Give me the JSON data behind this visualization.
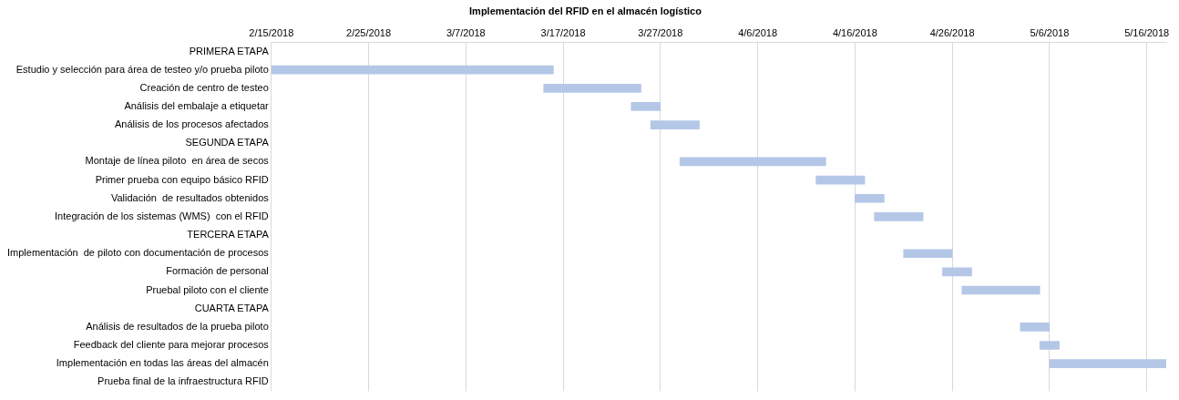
{
  "chart_data": {
    "type": "bar",
    "orientation": "horizontal",
    "title": "Implementación del RFID en el almacén logístico",
    "categories": [
      "PRIMERA ETAPA",
      "Estudio y selección para área de testeo y/o prueba piloto",
      "Creación de centro de testeo",
      "Análisis del embalaje a etiquetar",
      "Análisis de los procesos afectados",
      "SEGUNDA ETAPA",
      "Montaje de línea piloto  en área de secos",
      "Primer prueba con equipo básico RFID",
      "Validación  de resultados obtenidos",
      "Integración de los sistemas (WMS)  con el RFID",
      "TERCERA ETAPA",
      "Implementación  de piloto con documentación de procesos",
      "Formación de personal",
      "Pruebal piloto con el cliente",
      "CUARTA ETAPA",
      "Análisis de resultados de la prueba piloto",
      "Feedback del cliente para mejorar procesos",
      "Implementación en todas las áreas del almacén",
      "Prueba final de la infraestructura RFID"
    ],
    "base": [
      null,
      17577,
      17605,
      17614,
      17616,
      null,
      17619,
      17633,
      17637,
      17639,
      null,
      17642,
      17646,
      17648,
      null,
      17654,
      17656,
      17657,
      null
    ],
    "values": [
      null,
      29,
      10,
      3,
      5,
      null,
      15,
      5,
      3,
      5,
      null,
      5,
      3,
      8,
      null,
      3,
      2,
      12,
      null
    ],
    "color": "#b4c7e7",
    "xlim": [
      "2018-02-15",
      "2018-05-18"
    ],
    "xticks": [
      {
        "value": "2018-02-15",
        "label": "2/15/2018"
      },
      {
        "value": "2018-02-25",
        "label": "2/25/2018"
      },
      {
        "value": "2018-03-07",
        "label": "3/7/2018"
      },
      {
        "value": "2018-03-17",
        "label": "3/17/2018"
      },
      {
        "value": "2018-03-27",
        "label": "3/27/2018"
      },
      {
        "value": "2018-04-06",
        "label": "4/6/2018"
      },
      {
        "value": "2018-04-16",
        "label": "4/16/2018"
      },
      {
        "value": "2018-04-26",
        "label": "4/26/2018"
      },
      {
        "value": "2018-05-06",
        "label": "5/6/2018"
      },
      {
        "value": "2018-05-16",
        "label": "5/16/2018"
      }
    ],
    "grid": "x",
    "legend": false
  }
}
